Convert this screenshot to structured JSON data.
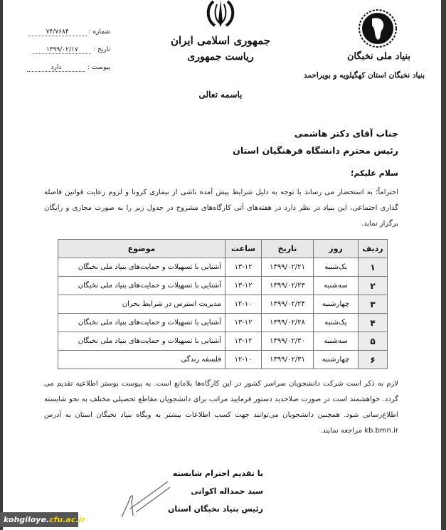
{
  "header": {
    "number_label": "شماره :",
    "number_value": "۷۴/۷۶۸۴",
    "date_label": "تاریخ :",
    "date_value": "۱۳۹۹/۰۲/۱۷",
    "attachment_label": "پیوست :",
    "attachment_value": "دارد",
    "center_line1": "جمهوری اسلامی ایران",
    "center_line2": "ریاست جمهوری",
    "invocation": "باسمه تعالی",
    "org_line1": "بنیاد ملی نخبگان",
    "org_line2": "بنیاد نخبگان استان کهگیلویه و بویراحمد"
  },
  "addressee": {
    "line1": "جناب آقای دکتر هاشمی",
    "line2": "رئیس محترم دانشگاه فرهنگیان استان"
  },
  "greeting": "سلام علیکم؛",
  "intro": "احتراماً؛ به استحضار می رساند با توجه به دلیل شرایط پیش آمده ناشی از بیماری کرونا و لزوم رعایت قوانین فاصله گذاری اجتماعی، این بنیاد در نظر دارد در هفته‌های آتی کارگاه‌های مشروح در جدول زیر را به صورت مجازی و رایگان برگزار نماید.",
  "table": {
    "headers": [
      "ردیف",
      "روز",
      "تاریخ",
      "ساعت",
      "موضوع"
    ],
    "rows": [
      [
        "۱",
        "یک‌شنبه",
        "۱۳۹۹/۰۲/۲۱",
        "۱۳-۱۲",
        "آشنایی با تسهیلات و حمایت‌های بنیاد ملی نخبگان"
      ],
      [
        "۲",
        "سه‌شنبه",
        "۱۳۹۹/۰۲/۲۳",
        "۱۳-۱۲",
        "آشنایی با تسهیلات و حمایت‌های بنیاد ملی نخبگان"
      ],
      [
        "۳",
        "چهارشنبه",
        "۱۳۹۹/۰۲/۲۴",
        "۱۲-۱۰",
        "مدیریت استرس در شرایط بحران"
      ],
      [
        "۴",
        "یک‌شنبه",
        "۱۳۹۹/۰۲/۲۸",
        "۱۳-۱۲",
        "آشنایی با تسهیلات و حمایت‌های بنیاد ملی نخبگان"
      ],
      [
        "۵",
        "سه‌شنبه",
        "۱۳۹۹/۰۲/۳۰",
        "۱۳-۱۲",
        "آشنایی با تسهیلات و حمایت‌های بنیاد ملی نخبگان"
      ],
      [
        "۶",
        "چهارشنبه",
        "۱۳۹۹/۰۲/۳۱",
        "۱۲-۱۰",
        "فلسفه زندگی"
      ]
    ]
  },
  "closing": "لازم به ذکر است شرکت دانشجویان سراسر کشور در این کارگاه‌ها بلامانع است. به پیوست پوستر اطلاعیه تقدیم می گردد. خواهشمند است در صورت صلاحدید دستور فرمایید مراتب برای دانشجویان مقاطع تحصیلی مختلف به نحو شایسته اطلاع‌رسانی شود. همچنین دانشجویان می‌توانند جهت کسب اطلاعات بیشتر به وبگاه بنیاد نخبگان استان به آدرس kb.bmn.ir مراجعه نمایند.",
  "signature": {
    "regards": "با تقدیم احترام شایسته",
    "name": "سید حمداله اکوانی",
    "title": "رئیس بنیاد نخبگان استان"
  },
  "watermark": {
    "part1": "kohgiloye.",
    "part2": "cfu.ac.ir"
  },
  "colors": {
    "border": "#3a3a3a",
    "watermark_bg": "#555555",
    "watermark_accent": "#f2d21b"
  }
}
